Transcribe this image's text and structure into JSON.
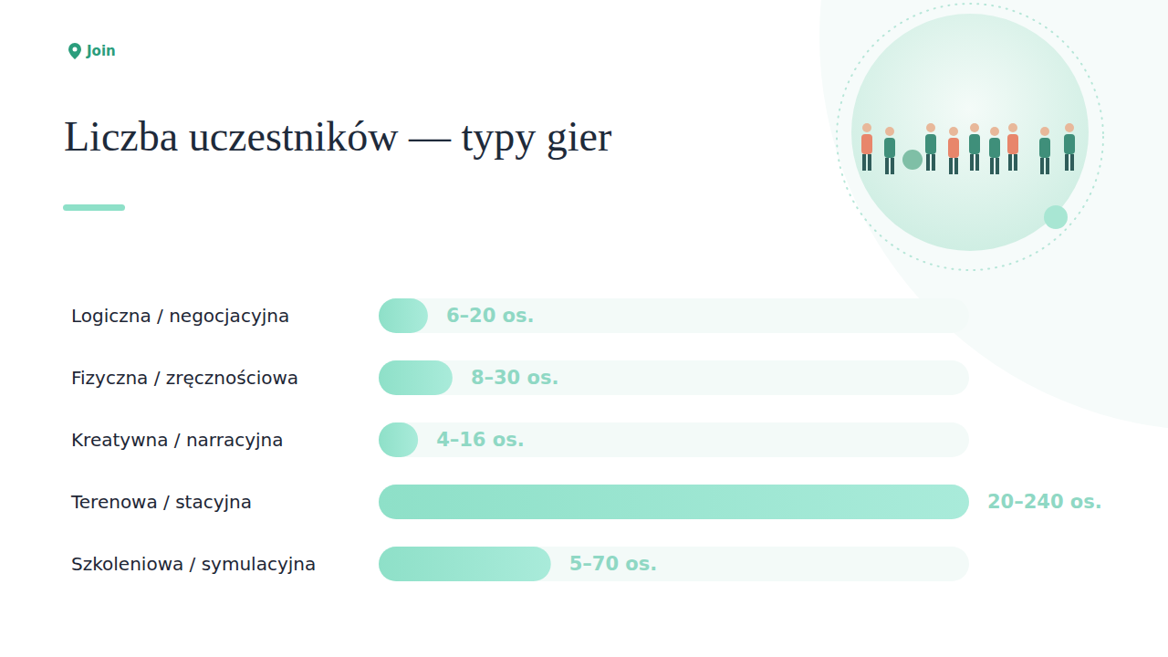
{
  "logo": "Join",
  "chart_data": {
    "type": "bar",
    "orientation": "horizontal",
    "title": "Liczba uczestników — typy gier",
    "categories": [
      "Logiczna / negocjacyjna",
      "Fizyczna / zręcznościowa",
      "Kreatywna / narracyjna",
      "Terenowa / stacyjna",
      "Szkoleniowa / symulacyjna"
    ],
    "values": [
      20,
      30,
      16,
      240,
      70
    ],
    "value_labels": [
      "6–20 os.",
      "8–30 os.",
      "4–16 os.",
      "20–240 os.",
      "5–70 os."
    ],
    "data_labels": true,
    "color": "#8ee0c8",
    "xlim": [
      0,
      240
    ],
    "tick_labels": "y",
    "grid": false
  }
}
